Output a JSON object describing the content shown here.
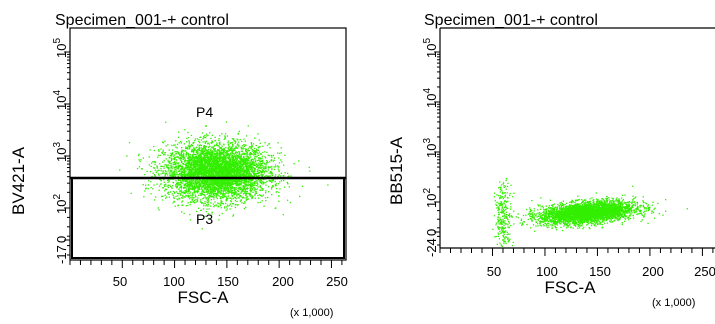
{
  "chart_data": [
    {
      "type": "scatter",
      "title": "Specimen_001-+ control",
      "xlabel": "FSC-A",
      "ylabel": "BV421-A",
      "x_multiplier": "(x 1,000)",
      "xlim": [
        0,
        262
      ],
      "x_ticks": [
        "50",
        "100",
        "150",
        "200",
        "250"
      ],
      "y_scale": "biexponential",
      "y_ticks": [
        {
          "label": "10^5",
          "base": "10",
          "exp": "5"
        },
        {
          "label": "10^4",
          "base": "10",
          "exp": "4"
        },
        {
          "label": "10^3",
          "base": "10",
          "exp": "3"
        },
        {
          "label": "10^2",
          "base": "10",
          "exp": "2"
        },
        {
          "label": "0",
          "base": "0",
          "exp": ""
        },
        {
          "label": "-17",
          "base": "-17",
          "exp": ""
        }
      ],
      "events_color": "#33ee00",
      "gates": [
        {
          "name": "P4",
          "type": "rectangle",
          "x_range": [
            0,
            262
          ],
          "y_threshold_value": "10^2.5",
          "position": "above"
        },
        {
          "name": "P3",
          "type": "rectangle",
          "x_range": [
            0,
            262
          ],
          "y_threshold_value": "10^2.5",
          "position": "below"
        }
      ],
      "population": {
        "x_center": 140,
        "x_spread": 45,
        "y_center_log": 2.7,
        "y_spread_log": 0.45
      }
    },
    {
      "type": "scatter",
      "title": "Specimen_001-+ control",
      "xlabel": "FSC-A",
      "ylabel": "BB515-A",
      "x_multiplier": "(x 1,000)",
      "xlim": [
        0,
        262
      ],
      "x_ticks": [
        "50",
        "100",
        "150",
        "200",
        "250"
      ],
      "y_scale": "biexponential",
      "y_ticks": [
        {
          "label": "10^5",
          "base": "10",
          "exp": "5"
        },
        {
          "label": "10^4",
          "base": "10",
          "exp": "4"
        },
        {
          "label": "10^3",
          "base": "10",
          "exp": "3"
        },
        {
          "label": "10^2",
          "base": "10",
          "exp": "2"
        },
        {
          "label": "0",
          "base": "0",
          "exp": ""
        },
        {
          "label": "-24",
          "base": "-24",
          "exp": ""
        }
      ],
      "events_color": "#33ee00",
      "gates": [],
      "population": {
        "x_center": 140,
        "x_spread": 45,
        "y_center_log": 1.8,
        "y_spread_log": 0.15
      }
    }
  ]
}
